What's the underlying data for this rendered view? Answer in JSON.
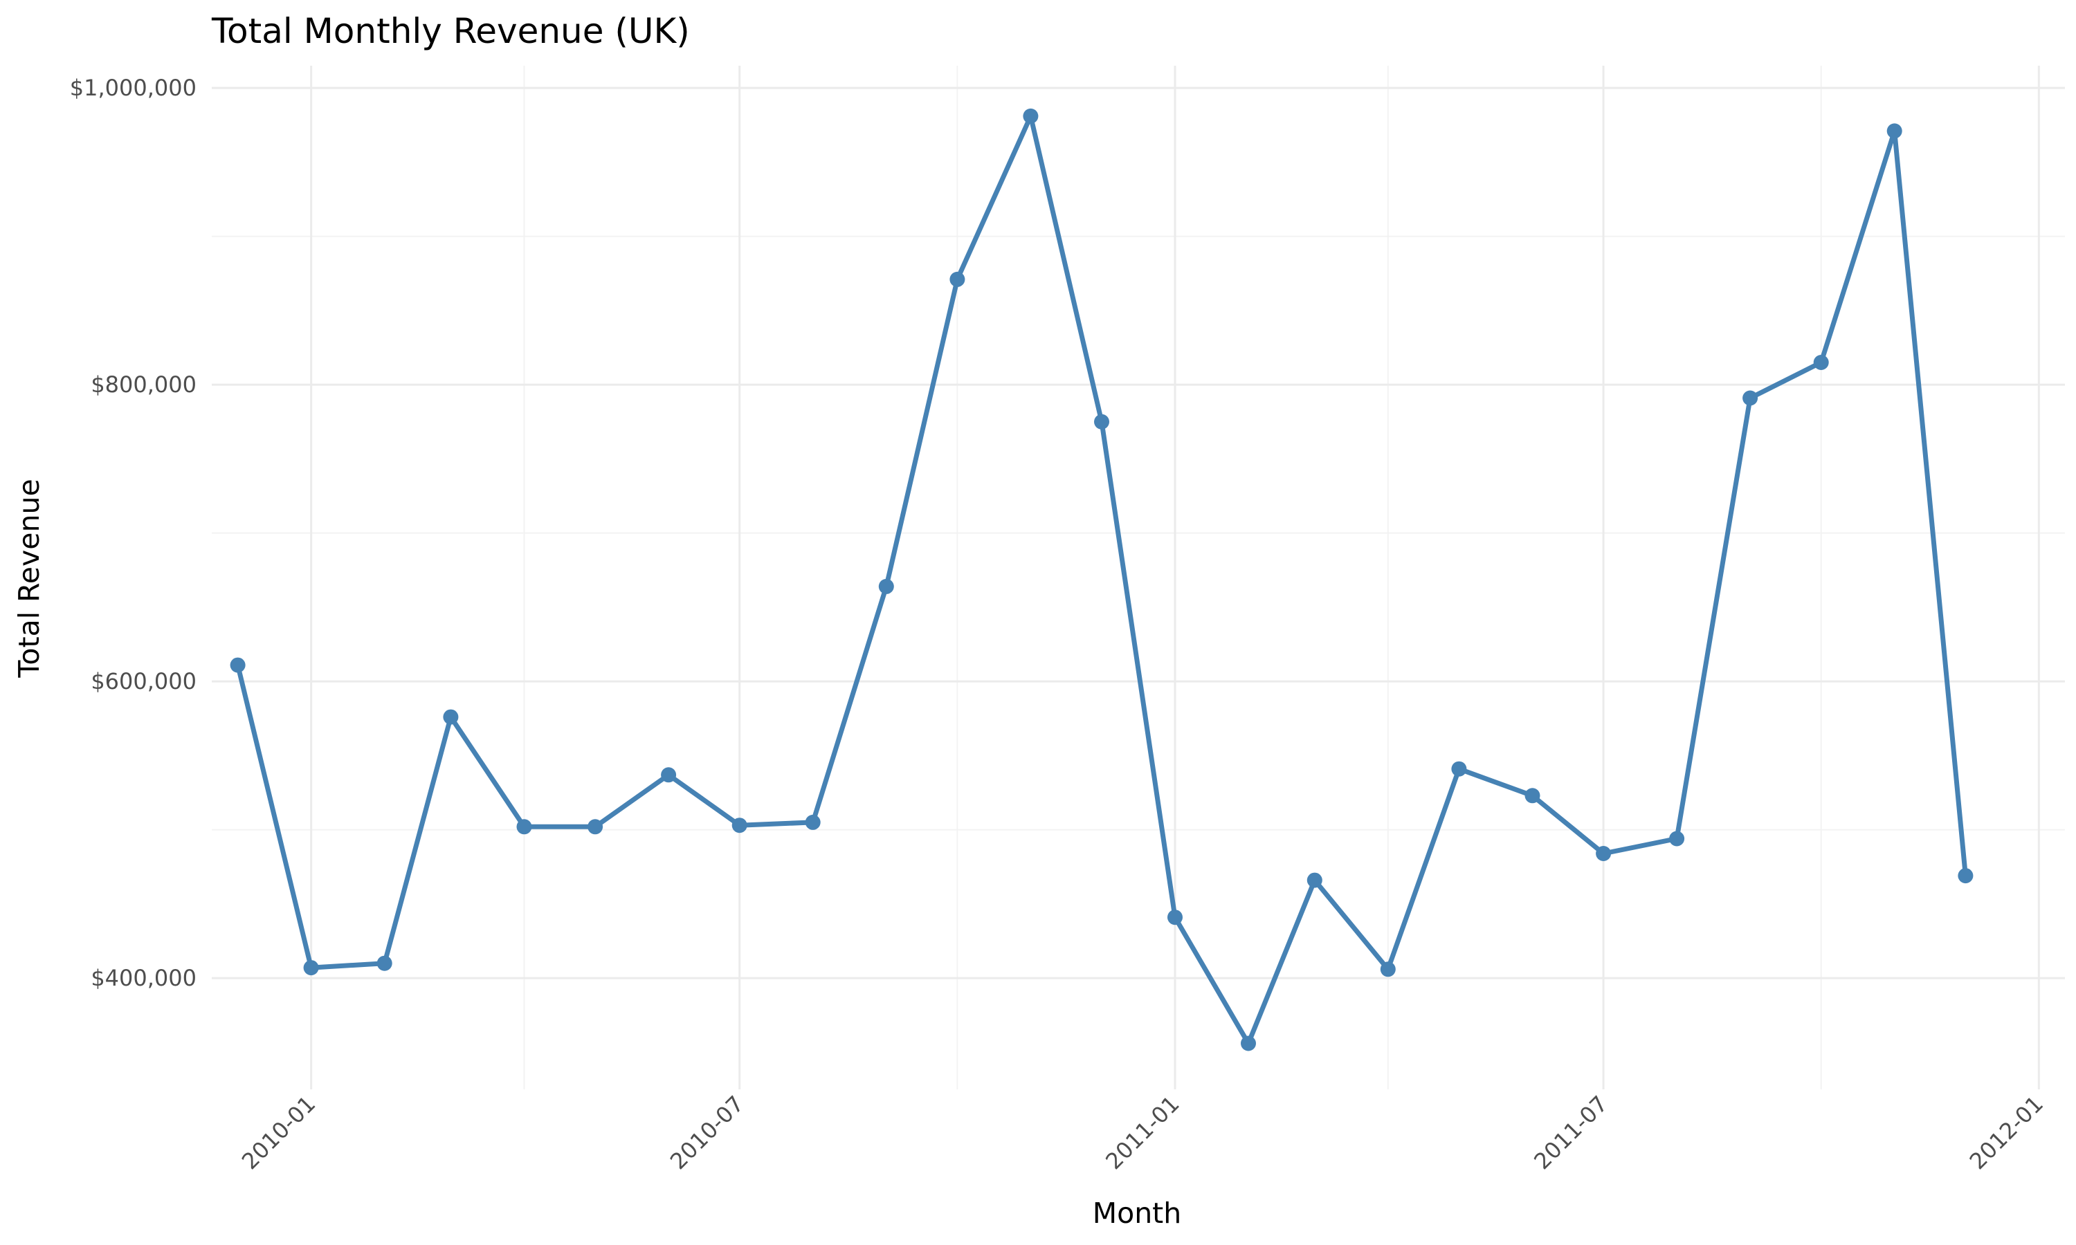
{
  "chart_data": {
    "type": "line",
    "title": "Total Monthly Revenue (UK)",
    "xlabel": "Month",
    "ylabel": "Total Revenue",
    "x_tick_labels": [
      "2010-01",
      "2010-07",
      "2011-01",
      "2011-07",
      "2012-01"
    ],
    "y_tick_labels": [
      "$400,000",
      "$600,000",
      "$800,000",
      "$1,000,000"
    ],
    "y_ticks": [
      400000,
      600000,
      800000,
      1000000
    ],
    "ylim": [
      325000,
      1015000
    ],
    "xlim": [
      "2009-11-20",
      "2012-01-12"
    ],
    "grid": true,
    "color": "#4682b4",
    "x": [
      "2009-12-01",
      "2010-01-01",
      "2010-02-01",
      "2010-03-01",
      "2010-04-01",
      "2010-05-01",
      "2010-06-01",
      "2010-07-01",
      "2010-08-01",
      "2010-09-01",
      "2010-10-01",
      "2010-11-01",
      "2010-12-01",
      "2011-01-01",
      "2011-02-01",
      "2011-03-01",
      "2011-04-01",
      "2011-05-01",
      "2011-06-01",
      "2011-07-01",
      "2011-08-01",
      "2011-09-01",
      "2011-10-01",
      "2011-11-01",
      "2011-12-01"
    ],
    "values": [
      611000,
      407000,
      410000,
      576000,
      502000,
      502000,
      537000,
      503000,
      505000,
      664000,
      871000,
      981000,
      775000,
      441000,
      356000,
      466000,
      406000,
      541000,
      523000,
      484000,
      494000,
      791000,
      815000,
      971000,
      469000
    ]
  }
}
